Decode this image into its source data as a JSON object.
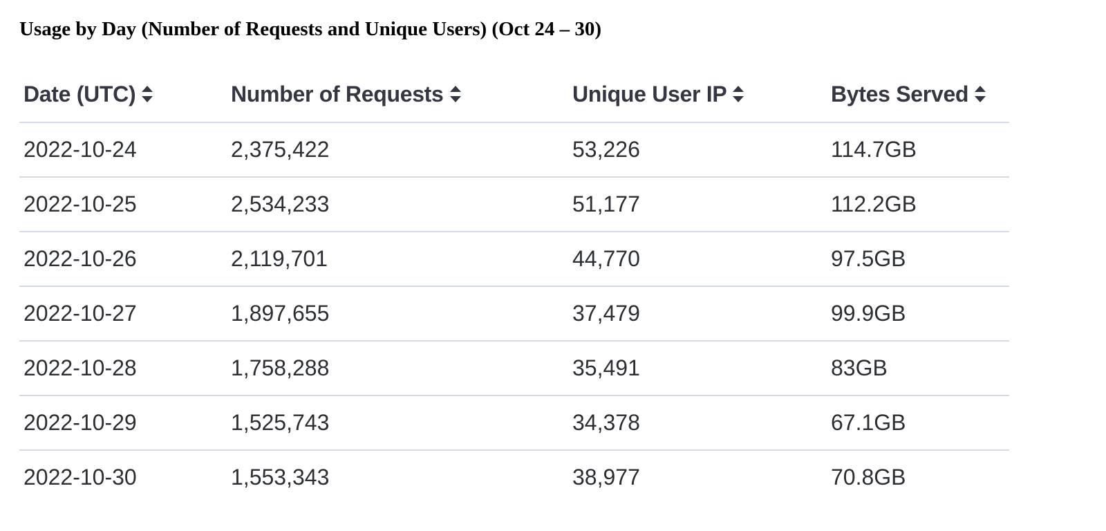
{
  "title": "Usage by Day (Number of Requests and Unique Users) (Oct 24 – 30)",
  "table": {
    "columns": [
      {
        "label": "Date (UTC)",
        "sort_icon": "sort-icon"
      },
      {
        "label": "Number of Requests",
        "sort_icon": "sort-icon"
      },
      {
        "label": "Unique User IP",
        "sort_icon": "sort-icon"
      },
      {
        "label": "Bytes Served",
        "sort_icon": "sort-icon"
      }
    ],
    "rows": [
      [
        "2022-10-24",
        "2,375,422",
        "53,226",
        "114.7GB"
      ],
      [
        "2022-10-25",
        "2,534,233",
        "51,177",
        "112.2GB"
      ],
      [
        "2022-10-26",
        "2,119,701",
        "44,770",
        "97.5GB"
      ],
      [
        "2022-10-27",
        "1,897,655",
        "37,479",
        "99.9GB"
      ],
      [
        "2022-10-28",
        "1,758,288",
        "35,491",
        "83GB"
      ],
      [
        "2022-10-29",
        "1,525,743",
        "34,378",
        "67.1GB"
      ],
      [
        "2022-10-30",
        "1,553,343",
        "38,977",
        "70.8GB"
      ]
    ]
  },
  "colors": {
    "header_text": "#343741",
    "cell_text": "#2b2e33",
    "divider": "#d3dae6"
  }
}
